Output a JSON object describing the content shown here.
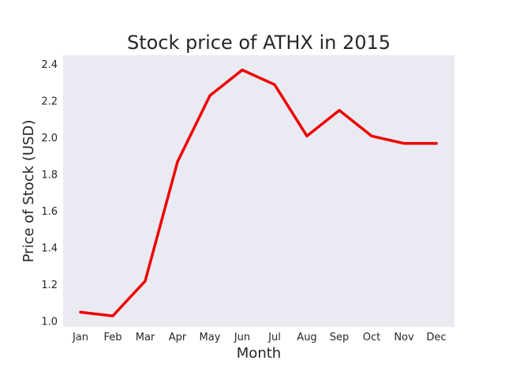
{
  "chart_data": {
    "type": "line",
    "title": "Stock price of ATHX in 2015",
    "xlabel": "Month",
    "ylabel": "Price of Stock (USD)",
    "categories": [
      "Jan",
      "Feb",
      "Mar",
      "Apr",
      "May",
      "Jun",
      "Jul",
      "Aug",
      "Sep",
      "Oct",
      "Nov",
      "Dec"
    ],
    "series": [
      {
        "values": [
          1.05,
          1.03,
          1.22,
          1.87,
          2.23,
          2.37,
          2.29,
          2.01,
          2.15,
          2.01,
          1.97,
          1.97
        ],
        "color": "#ee0000"
      }
    ],
    "ylim": [
      0.97,
      2.45
    ],
    "yticks": [
      "1.0",
      "1.2",
      "1.4",
      "1.6",
      "1.8",
      "2.0",
      "2.2",
      "2.4"
    ],
    "grid": false,
    "background": "#eaeaf2"
  }
}
